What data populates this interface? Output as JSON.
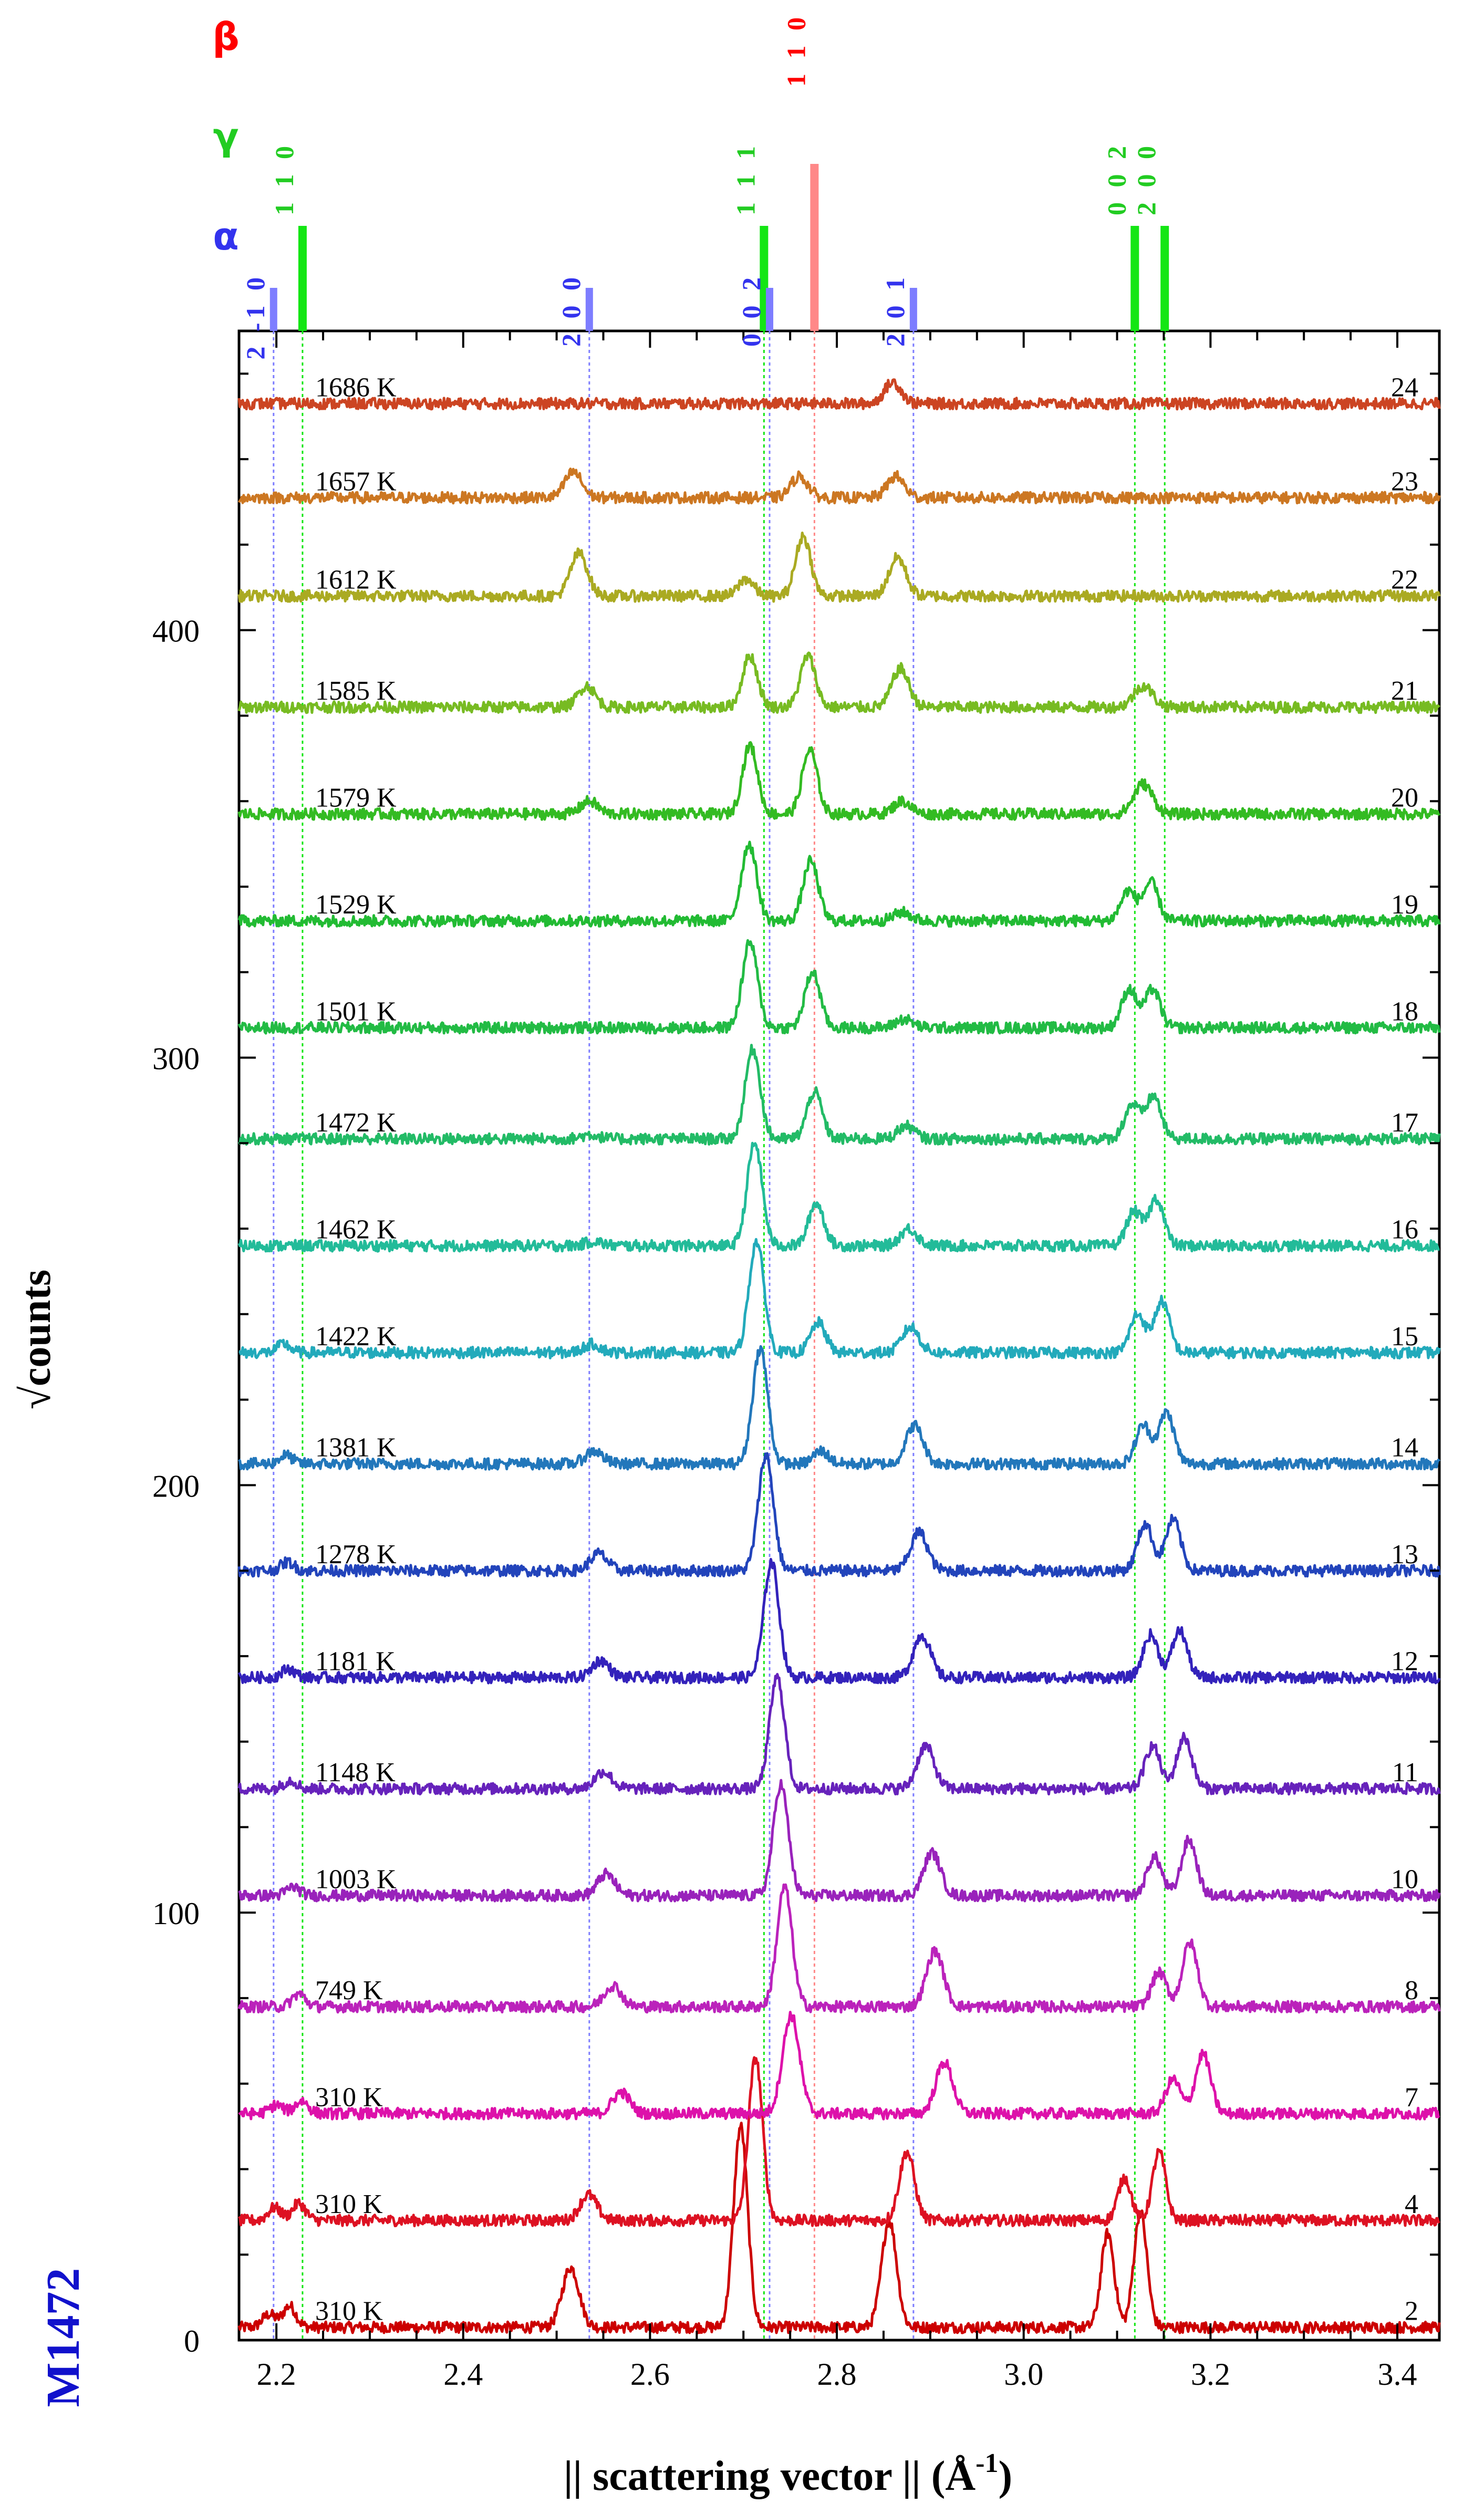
{
  "chart_data": {
    "type": "line",
    "title": "",
    "sample_id": "M1472",
    "xlabel": "|| scattering vector || (Å",
    "xlabel_sup": "-1",
    "xlabel_close": ")",
    "ylabel": "√counts",
    "xlim": [
      2.16,
      3.445
    ],
    "ylim": [
      0,
      470
    ],
    "x_ticks": [
      2.2,
      2.4,
      2.6,
      2.8,
      3.0,
      3.2,
      3.4
    ],
    "x_tick_labels": [
      "2.2",
      "2.4",
      "2.6",
      "2.8",
      "3.0",
      "3.2",
      "3.4"
    ],
    "y_ticks": [
      0,
      100,
      200,
      300,
      400
    ],
    "y_tick_labels": [
      "0",
      "100",
      "200",
      "300",
      "400"
    ],
    "phases": [
      {
        "symbol": "β",
        "color": "#ff0000"
      },
      {
        "symbol": "γ",
        "color": "#22cc22"
      },
      {
        "symbol": "α",
        "color": "#3333ee"
      }
    ],
    "reflections": [
      {
        "phase": "α",
        "hkl": "2 -1 0",
        "x": 2.197,
        "color": "#7d7dff"
      },
      {
        "phase": "γ",
        "hkl": "1 1 0",
        "x": 2.228,
        "color": "#14e614"
      },
      {
        "phase": "α",
        "hkl": "2 0 0",
        "x": 2.535,
        "color": "#7d7dff"
      },
      {
        "phase": "γ",
        "hkl": "1 1 1",
        "x": 2.722,
        "color": "#14e614"
      },
      {
        "phase": "α",
        "hkl": "0 0 2",
        "x": 2.728,
        "color": "#7d7dff"
      },
      {
        "phase": "β",
        "hkl": "1 1 0",
        "x": 2.776,
        "color": "#ff8888"
      },
      {
        "phase": "α",
        "hkl": "2 0 1",
        "x": 2.882,
        "color": "#7d7dff"
      },
      {
        "phase": "γ",
        "hkl": "0 0 2",
        "x": 3.119,
        "color": "#14e614"
      },
      {
        "phase": "γ",
        "hkl": "2 0 0",
        "x": 3.151,
        "color": "#14e614"
      }
    ],
    "series": [
      {
        "run": "2",
        "temperature": "310 K",
        "baseline": 3,
        "color": "#cc0000",
        "peaks": [
          [
            2.192,
            3,
            0.007
          ],
          [
            2.214,
            5,
            0.007
          ],
          [
            2.515,
            14,
            0.009
          ],
          [
            2.697,
            47,
            0.0075
          ],
          [
            2.856,
            25,
            0.008
          ],
          [
            3.09,
            22,
            0.007
          ],
          [
            3.125,
            27,
            0.007
          ]
        ]
      },
      {
        "run": "4",
        "temperature": "310 K",
        "baseline": 28,
        "color": "#dd1122",
        "peaks": [
          [
            2.198,
            3,
            0.007
          ],
          [
            2.224,
            4,
            0.007
          ],
          [
            2.534,
            6,
            0.009
          ],
          [
            2.713,
            38,
            0.0075
          ],
          [
            2.875,
            16,
            0.008
          ],
          [
            3.108,
            10,
            0.007
          ],
          [
            3.145,
            16,
            0.007
          ]
        ]
      },
      {
        "run": "7",
        "temperature": "310 K",
        "baseline": 53,
        "color": "#dd11aa",
        "peaks": [
          [
            2.2,
            2,
            0.007
          ],
          [
            2.227,
            3,
            0.007
          ],
          [
            2.569,
            5,
            0.009
          ],
          [
            2.751,
            23,
            0.009
          ],
          [
            2.915,
            12,
            0.009
          ],
          [
            3.16,
            8,
            0.008
          ],
          [
            3.192,
            14,
            0.008
          ]
        ]
      },
      {
        "run": "8",
        "temperature": "749 K",
        "baseline": 78,
        "color": "#bb22bb",
        "peaks": [
          [
            2.224,
            3,
            0.007
          ],
          [
            2.56,
            5,
            0.009
          ],
          [
            2.744,
            28,
            0.008
          ],
          [
            2.905,
            13,
            0.009
          ],
          [
            3.145,
            8,
            0.008
          ],
          [
            3.178,
            15,
            0.008
          ]
        ]
      },
      {
        "run": "10",
        "temperature": "1003 K",
        "baseline": 104,
        "color": "#9922bb",
        "peaks": [
          [
            2.218,
            2,
            0.007
          ],
          [
            2.553,
            5,
            0.009
          ],
          [
            2.74,
            26,
            0.008
          ],
          [
            2.902,
            10,
            0.009
          ],
          [
            3.14,
            9,
            0.008
          ],
          [
            3.177,
            13,
            0.008
          ]
        ]
      },
      {
        "run": "11",
        "temperature": "1148 K",
        "baseline": 129,
        "color": "#6622bb",
        "peaks": [
          [
            2.215,
            2,
            0.007
          ],
          [
            2.55,
            4,
            0.009
          ],
          [
            2.736,
            26,
            0.008
          ],
          [
            2.895,
            10,
            0.009
          ],
          [
            3.138,
            10,
            0.008
          ],
          [
            3.172,
            12,
            0.008
          ]
        ]
      },
      {
        "run": "12",
        "temperature": "1181 K",
        "baseline": 155,
        "color": "#3322bb",
        "peaks": [
          [
            2.213,
            2,
            0.007
          ],
          [
            2.547,
            4,
            0.009
          ],
          [
            2.73,
            27,
            0.008
          ],
          [
            2.891,
            10,
            0.009
          ],
          [
            3.136,
            10,
            0.008
          ],
          [
            3.167,
            11,
            0.008
          ]
        ]
      },
      {
        "run": "13",
        "temperature": "1278 K",
        "baseline": 180,
        "color": "#2244bb",
        "peaks": [
          [
            2.212,
            2,
            0.007
          ],
          [
            2.545,
            4,
            0.009
          ],
          [
            2.724,
            27,
            0.008
          ],
          [
            2.888,
            9,
            0.009
          ],
          [
            3.13,
            11,
            0.008
          ],
          [
            3.16,
            12,
            0.008
          ]
        ]
      },
      {
        "run": "14",
        "temperature": "1381 K",
        "baseline": 205,
        "color": "#2277bb",
        "peaks": [
          [
            2.21,
            2,
            0.007
          ],
          [
            2.54,
            3,
            0.009
          ],
          [
            2.718,
            27,
            0.008
          ],
          [
            2.783,
            3,
            0.008
          ],
          [
            2.883,
            9,
            0.009
          ],
          [
            3.128,
            9,
            0.008
          ],
          [
            3.153,
            12,
            0.008
          ]
        ]
      },
      {
        "run": "15",
        "temperature": "1422 K",
        "baseline": 231,
        "color": "#22aabb",
        "peaks": [
          [
            2.208,
            2,
            0.007
          ],
          [
            2.538,
            2,
            0.009
          ],
          [
            2.714,
            26,
            0.008
          ],
          [
            2.78,
            7,
            0.008
          ],
          [
            2.879,
            6,
            0.009
          ],
          [
            3.122,
            9,
            0.008
          ],
          [
            3.148,
            12,
            0.008
          ]
        ]
      },
      {
        "run": "16",
        "temperature": "1462 K",
        "baseline": 256,
        "color": "#22bb99",
        "peaks": [
          [
            2.54,
            1,
            0.009
          ],
          [
            2.712,
            24,
            0.008
          ],
          [
            2.778,
            10,
            0.008
          ],
          [
            2.877,
            4,
            0.009
          ],
          [
            3.118,
            8,
            0.008
          ],
          [
            3.142,
            11,
            0.008
          ]
        ]
      },
      {
        "run": "17",
        "temperature": "1472 K",
        "baseline": 281,
        "color": "#22bb66",
        "peaks": [
          [
            2.536,
            1,
            0.009
          ],
          [
            2.71,
            21,
            0.008
          ],
          [
            2.776,
            11,
            0.008
          ],
          [
            2.874,
            3,
            0.009
          ],
          [
            3.116,
            8,
            0.008
          ],
          [
            3.139,
            10,
            0.008
          ]
        ]
      },
      {
        "run": "18",
        "temperature": "1501 K",
        "baseline": 307,
        "color": "#22bb44",
        "peaks": [
          [
            2.707,
            20,
            0.008
          ],
          [
            2.774,
            13,
            0.008
          ],
          [
            2.872,
            2,
            0.009
          ],
          [
            3.113,
            9,
            0.008
          ],
          [
            3.138,
            9,
            0.008
          ]
        ]
      },
      {
        "run": "19",
        "temperature": "1529 K",
        "baseline": 332,
        "color": "#22bb33",
        "peaks": [
          [
            2.706,
            18,
            0.008
          ],
          [
            2.772,
            14,
            0.008
          ],
          [
            2.87,
            2,
            0.009
          ],
          [
            3.112,
            7,
            0.008
          ],
          [
            3.136,
            9,
            0.008
          ]
        ]
      },
      {
        "run": "20",
        "temperature": "1579 K",
        "baseline": 357,
        "color": "#33bb22",
        "peaks": [
          [
            2.535,
            3,
            0.009
          ],
          [
            2.707,
            16,
            0.008
          ],
          [
            2.771,
            15,
            0.008
          ],
          [
            2.87,
            3,
            0.009
          ],
          [
            3.128,
            7,
            0.01
          ]
        ]
      },
      {
        "run": "21",
        "temperature": "1585 K",
        "baseline": 382,
        "color": "#77bb22",
        "peaks": [
          [
            2.532,
            5,
            0.009
          ],
          [
            2.707,
            12,
            0.008
          ],
          [
            2.769,
            12,
            0.008
          ],
          [
            2.868,
            9,
            0.009
          ],
          [
            3.128,
            5,
            0.01
          ]
        ]
      },
      {
        "run": "22",
        "temperature": "1612 K",
        "baseline": 408,
        "color": "#aaaa22",
        "peaks": [
          [
            2.524,
            10,
            0.009
          ],
          [
            2.703,
            4,
            0.008
          ],
          [
            2.764,
            14,
            0.008
          ],
          [
            2.865,
            9,
            0.009
          ]
        ]
      },
      {
        "run": "23",
        "temperature": "1657 K",
        "baseline": 431,
        "color": "#cc7722",
        "peaks": [
          [
            2.518,
            6,
            0.009
          ],
          [
            2.76,
            5,
            0.009
          ],
          [
            2.863,
            5,
            0.009
          ]
        ]
      },
      {
        "run": "24",
        "temperature": "1686 K",
        "baseline": 453,
        "color": "#cc4422",
        "peaks": [
          [
            2.86,
            5,
            0.009
          ]
        ]
      }
    ]
  }
}
